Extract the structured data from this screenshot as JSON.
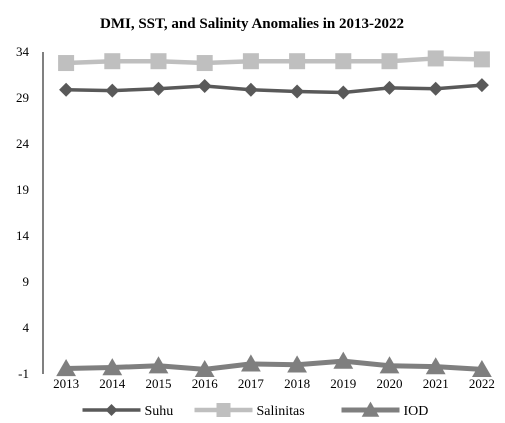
{
  "chart_data": {
    "type": "line",
    "title": "DMI, SST, and Salinity Anomalies in 2013-2022",
    "xlabel": "",
    "ylabel": "",
    "categories": [
      "2013",
      "2014",
      "2015",
      "2016",
      "2017",
      "2018",
      "2019",
      "2020",
      "2021",
      "2022"
    ],
    "ylim": [
      -1,
      34
    ],
    "yticks": [
      -1,
      4,
      9,
      14,
      19,
      24,
      29,
      34
    ],
    "grid": false,
    "legend_position": "bottom",
    "series": [
      {
        "name": "Suhu",
        "marker": "diamond",
        "color": "#595959",
        "values": [
          29.9,
          29.8,
          30.0,
          30.3,
          29.9,
          29.7,
          29.6,
          30.1,
          30.0,
          30.4
        ]
      },
      {
        "name": "Salinitas",
        "marker": "square",
        "color": "#bfbfbf",
        "values": [
          32.8,
          33.0,
          33.0,
          32.8,
          33.0,
          33.0,
          33.0,
          33.0,
          33.3,
          33.2
        ]
      },
      {
        "name": "IOD",
        "marker": "triangle",
        "color": "#7f7f7f",
        "values": [
          -0.4,
          -0.3,
          -0.1,
          -0.5,
          0.1,
          0.0,
          0.4,
          -0.1,
          -0.2,
          -0.5
        ]
      }
    ]
  }
}
